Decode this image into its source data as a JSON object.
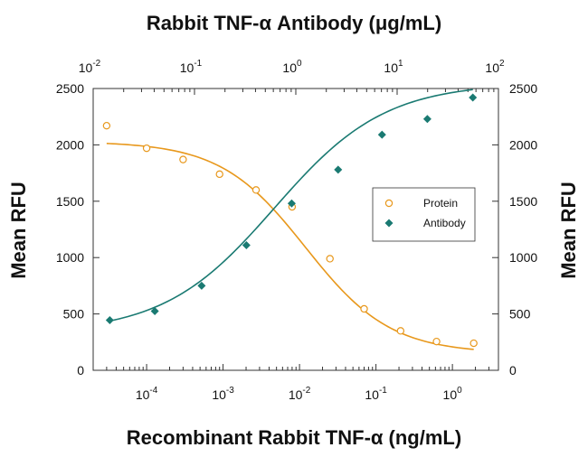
{
  "chart_data": {
    "type": "scatter",
    "title": "Rabbit TNF-α Antibody (μg/mL)",
    "xlabel": "Recombinant Rabbit TNF-α (ng/mL)",
    "ylabel": "Mean RFU",
    "y2label": "Mean RFU",
    "xscale": "log",
    "xlim": [
      2e-05,
      4
    ],
    "top_xscale": "log",
    "top_xlim": [
      0.01,
      100
    ],
    "ylim": [
      0,
      2500
    ],
    "grid": false,
    "legend_position": "right-center",
    "bottom_ticks": [
      {
        "base": "10",
        "exp": "-4",
        "value": 0.0001
      },
      {
        "base": "10",
        "exp": "-3",
        "value": 0.001
      },
      {
        "base": "10",
        "exp": "-2",
        "value": 0.01
      },
      {
        "base": "10",
        "exp": "-1",
        "value": 0.1
      },
      {
        "base": "10",
        "exp": "0",
        "value": 1
      }
    ],
    "top_ticks": [
      {
        "base": "10",
        "exp": "-2",
        "value": 0.01
      },
      {
        "base": "10",
        "exp": "-1",
        "value": 0.1
      },
      {
        "base": "10",
        "exp": "0",
        "value": 1
      },
      {
        "base": "10",
        "exp": "1",
        "value": 10
      },
      {
        "base": "10",
        "exp": "2",
        "value": 100
      }
    ],
    "y_ticks": [
      "0",
      "500",
      "1000",
      "1500",
      "2000",
      "2500"
    ],
    "series": [
      {
        "name": "Protein",
        "color": "#e8981c",
        "marker": "open-circle",
        "x": [
          3e-05,
          0.0001,
          0.0003,
          0.0009,
          0.0027,
          0.008,
          0.025,
          0.07,
          0.21,
          0.62,
          1.9
        ],
        "y": [
          2170,
          1970,
          1870,
          1740,
          1600,
          1450,
          990,
          545,
          350,
          255,
          240
        ],
        "fit": "sigmoid-decreasing",
        "fit_params": {
          "top": 2030,
          "bottom": 150,
          "ec50": 0.012,
          "hill": 0.78
        }
      },
      {
        "name": "Antibody",
        "color": "#1a7a72",
        "marker": "filled-diamond",
        "x": [
          3.3e-05,
          0.000128,
          0.000524,
          0.00202,
          0.0079,
          0.032,
          0.12,
          0.47,
          1.85
        ],
        "y": [
          445,
          525,
          750,
          1110,
          1480,
          1780,
          2090,
          2230,
          2420
        ],
        "fit": "sigmoid-increasing",
        "fit_params": {
          "top": 2550,
          "bottom": 330,
          "ec50": 0.0047,
          "hill": 0.6
        }
      }
    ]
  }
}
